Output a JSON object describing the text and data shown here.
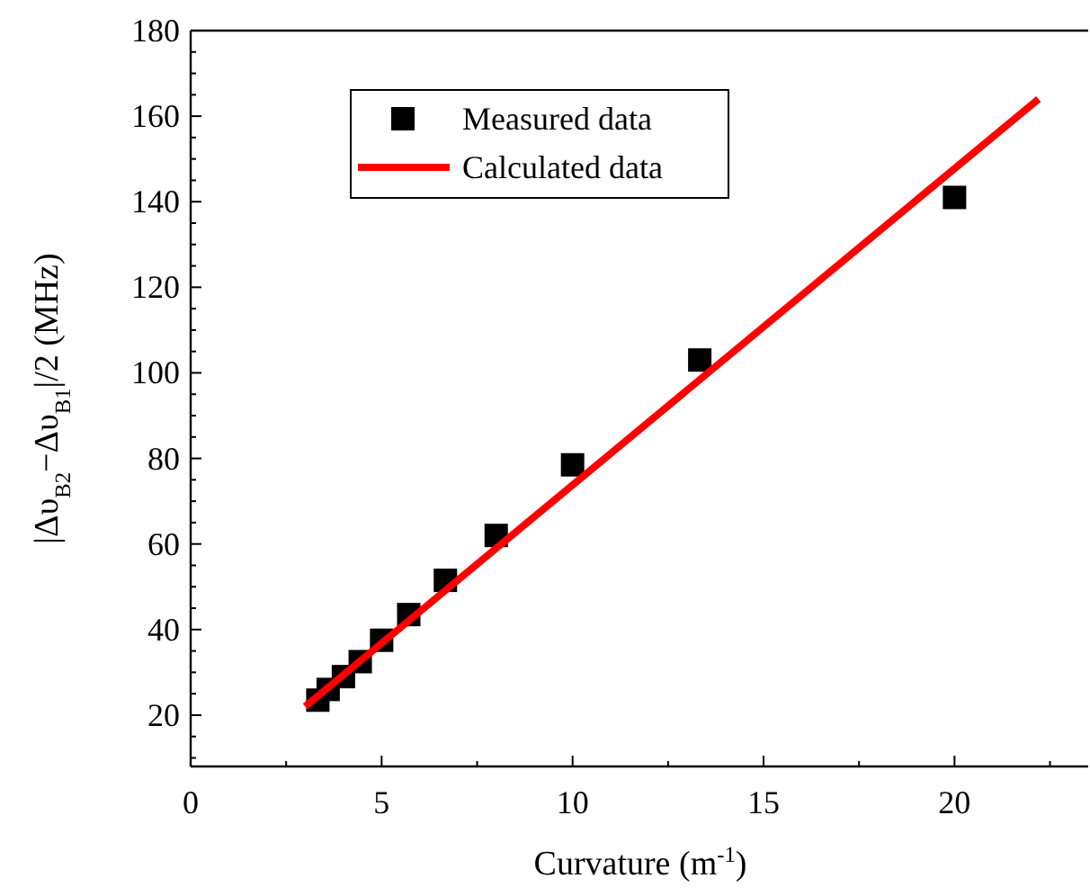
{
  "chart_data": {
    "type": "scatter",
    "xlabel": "Curvature (m$^{-1}$)",
    "ylabel": "|Δυ$_{B2}$−Δυ$_{B1}$|/2 (MHz)",
    "xlim": [
      0,
      23.5
    ],
    "ylim": [
      8,
      180
    ],
    "xticks": [
      0,
      5,
      10,
      15,
      20
    ],
    "yticks": [
      20,
      40,
      60,
      80,
      100,
      120,
      140,
      160,
      180
    ],
    "grid": false,
    "legend": "top left",
    "series": [
      {
        "name": "Measured data",
        "type": "scatter",
        "marker": "square",
        "color": "#000000",
        "x": [
          3.33,
          3.6,
          4,
          4.44,
          5,
          5.71,
          6.67,
          8,
          10,
          13.33,
          20
        ],
        "values": [
          23.5,
          26,
          29,
          32.5,
          37.5,
          43.5,
          51.5,
          62,
          78.5,
          103,
          141
        ]
      },
      {
        "name": "Calculated data",
        "type": "line",
        "marker": "none",
        "line_style": "solid",
        "color": "#ff0000",
        "x": [
          3,
          22.2
        ],
        "values": [
          22,
          164
        ]
      }
    ]
  }
}
